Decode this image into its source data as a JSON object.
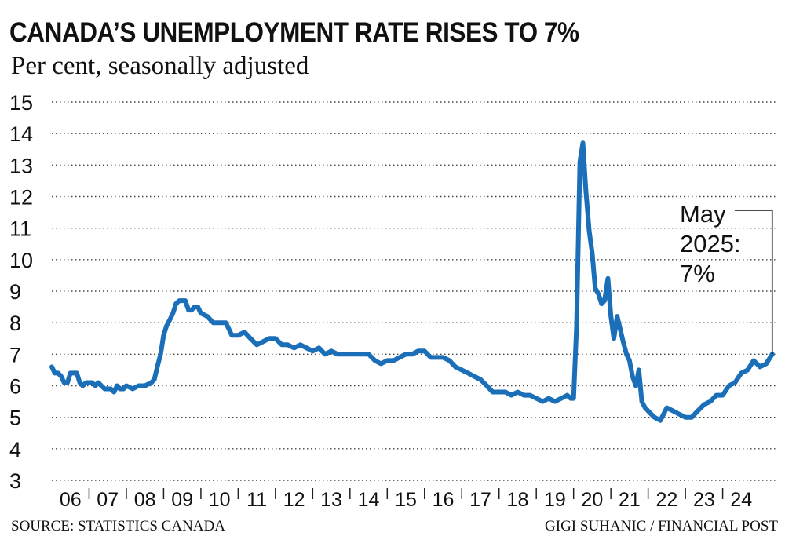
{
  "chart_data": {
    "type": "line",
    "title": "CANADA’S UNEMPLOYMENT RATE RISES TO 7%",
    "subtitle": "Per cent, seasonally adjusted",
    "source": "SOURCE: STATISTICS CANADA",
    "credit": "GIGI SUHANIC / FINANCIAL POST",
    "ylim": [
      3,
      15
    ],
    "yticks": [
      3,
      4,
      5,
      6,
      7,
      8,
      9,
      10,
      11,
      12,
      13,
      14,
      15
    ],
    "xlim": [
      2006.0,
      2025.42
    ],
    "xticks": [
      {
        "x": 2006,
        "label": "06"
      },
      {
        "x": 2007,
        "label": "07"
      },
      {
        "x": 2008,
        "label": "08"
      },
      {
        "x": 2009,
        "label": "09"
      },
      {
        "x": 2010,
        "label": "10"
      },
      {
        "x": 2011,
        "label": "11"
      },
      {
        "x": 2012,
        "label": "12"
      },
      {
        "x": 2013,
        "label": "13"
      },
      {
        "x": 2014,
        "label": "14"
      },
      {
        "x": 2015,
        "label": "15"
      },
      {
        "x": 2016,
        "label": "16"
      },
      {
        "x": 2017,
        "label": "17"
      },
      {
        "x": 2018,
        "label": "18"
      },
      {
        "x": 2019,
        "label": "19"
      },
      {
        "x": 2020,
        "label": "20"
      },
      {
        "x": 2021,
        "label": "21"
      },
      {
        "x": 2022,
        "label": "22"
      },
      {
        "x": 2023,
        "label": "23"
      },
      {
        "x": 2024,
        "label": "24"
      }
    ],
    "grid": "horizontal-dotted",
    "line_color": "#1a6fb8",
    "annotation": {
      "lines": [
        "May",
        "2025:",
        "7%"
      ],
      "x": 2025.33,
      "y": 7.0
    },
    "series": [
      {
        "x": [
          2006.0,
          2006.08,
          2006.17,
          2006.25,
          2006.33,
          2006.42,
          2006.5,
          2006.58,
          2006.67,
          2006.75,
          2006.83,
          2006.92,
          2007.0,
          2007.08,
          2007.17,
          2007.25,
          2007.33,
          2007.42,
          2007.5,
          2007.58,
          2007.67,
          2007.75,
          2007.83,
          2007.92,
          2008.0,
          2008.17,
          2008.33,
          2008.5,
          2008.67,
          2008.75,
          2008.83,
          2008.92,
          2009.0,
          2009.08,
          2009.17,
          2009.25,
          2009.33,
          2009.42,
          2009.5,
          2009.58,
          2009.67,
          2009.75,
          2009.83,
          2009.92,
          2010.0,
          2010.17,
          2010.33,
          2010.5,
          2010.67,
          2010.83,
          2011.0,
          2011.17,
          2011.33,
          2011.5,
          2011.67,
          2011.83,
          2012.0,
          2012.17,
          2012.33,
          2012.5,
          2012.67,
          2012.83,
          2013.0,
          2013.17,
          2013.33,
          2013.5,
          2013.67,
          2013.83,
          2014.0,
          2014.17,
          2014.33,
          2014.5,
          2014.67,
          2014.83,
          2015.0,
          2015.17,
          2015.33,
          2015.5,
          2015.67,
          2015.83,
          2016.0,
          2016.17,
          2016.33,
          2016.5,
          2016.67,
          2016.83,
          2017.0,
          2017.17,
          2017.33,
          2017.5,
          2017.67,
          2017.83,
          2018.0,
          2018.17,
          2018.33,
          2018.5,
          2018.67,
          2018.83,
          2019.0,
          2019.17,
          2019.33,
          2019.5,
          2019.67,
          2019.83,
          2019.92,
          2020.0,
          2020.08,
          2020.17,
          2020.25,
          2020.33,
          2020.42,
          2020.5,
          2020.58,
          2020.67,
          2020.75,
          2020.83,
          2020.92,
          2021.0,
          2021.08,
          2021.17,
          2021.25,
          2021.33,
          2021.42,
          2021.5,
          2021.58,
          2021.67,
          2021.75,
          2021.83,
          2021.92,
          2022.0,
          2022.17,
          2022.33,
          2022.5,
          2022.67,
          2022.83,
          2023.0,
          2023.17,
          2023.33,
          2023.5,
          2023.67,
          2023.83,
          2024.0,
          2024.17,
          2024.33,
          2024.5,
          2024.67,
          2024.83,
          2025.0,
          2025.17,
          2025.33
        ],
        "y": [
          6.6,
          6.4,
          6.4,
          6.3,
          6.1,
          6.1,
          6.4,
          6.4,
          6.4,
          6.1,
          6.0,
          6.1,
          6.1,
          6.1,
          6.0,
          6.1,
          6.0,
          5.9,
          5.9,
          5.9,
          5.8,
          6.0,
          5.9,
          5.9,
          6.0,
          5.9,
          6.0,
          6.0,
          6.1,
          6.2,
          6.6,
          7.0,
          7.6,
          7.9,
          8.1,
          8.3,
          8.6,
          8.7,
          8.7,
          8.7,
          8.4,
          8.4,
          8.5,
          8.5,
          8.3,
          8.2,
          8.0,
          8.0,
          8.0,
          7.6,
          7.6,
          7.7,
          7.5,
          7.3,
          7.4,
          7.5,
          7.5,
          7.3,
          7.3,
          7.2,
          7.3,
          7.2,
          7.1,
          7.2,
          7.0,
          7.1,
          7.0,
          7.0,
          7.0,
          7.0,
          7.0,
          7.0,
          6.8,
          6.7,
          6.8,
          6.8,
          6.9,
          7.0,
          7.0,
          7.1,
          7.1,
          6.9,
          6.9,
          6.9,
          6.8,
          6.6,
          6.5,
          6.4,
          6.3,
          6.2,
          6.0,
          5.8,
          5.8,
          5.8,
          5.7,
          5.8,
          5.7,
          5.7,
          5.6,
          5.5,
          5.6,
          5.5,
          5.6,
          5.7,
          5.6,
          5.6,
          7.9,
          13.1,
          13.7,
          12.2,
          10.9,
          10.2,
          9.1,
          8.9,
          8.6,
          8.7,
          9.4,
          8.2,
          7.5,
          8.2,
          7.8,
          7.4,
          7.0,
          6.8,
          6.3,
          6.0,
          6.5,
          5.5,
          5.3,
          5.2,
          5.0,
          4.9,
          5.3,
          5.2,
          5.1,
          5.0,
          5.0,
          5.2,
          5.4,
          5.5,
          5.7,
          5.7,
          6.0,
          6.1,
          6.4,
          6.5,
          6.8,
          6.6,
          6.7,
          7.0
        ]
      }
    ]
  }
}
